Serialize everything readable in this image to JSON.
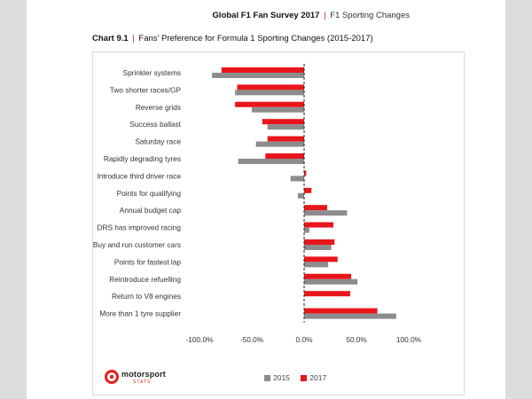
{
  "header": {
    "title": "Global F1 Fan Survey 2017",
    "separator": "|",
    "subtitle": "F1 Sporting Changes"
  },
  "chart_heading": {
    "number": "Chart 9.1",
    "separator": "|",
    "title": "Fans' Preference for Formula 1 Sporting Changes (2015-2017)"
  },
  "logo": {
    "word": "motorsport",
    "sub": "STATS"
  },
  "chart_data": {
    "type": "bar",
    "orientation": "horizontal",
    "categories": [
      "Sprinkler systems",
      "Two shorter races/GP",
      "Reverse grids",
      "Success ballast",
      "Saturday race",
      "Rapidly degrading tyres",
      "Introduce third driver race",
      "Points for qualifying",
      "Annual budget cap",
      "DRS has improved racing",
      "Buy and run customer cars",
      "Points for fastest lap",
      "Reintroduce refuelling",
      "Return to V8 engines",
      "More than 1 tyre supplier"
    ],
    "series": [
      {
        "name": "2015",
        "color": "#8c8c8c",
        "values": [
          -88,
          -66,
          -50,
          -35,
          -46,
          -63,
          -13,
          -6,
          41,
          5,
          26,
          23,
          51,
          null,
          88
        ]
      },
      {
        "name": "2017",
        "color": "#e8161b",
        "values": [
          -79,
          -64,
          -66,
          -40,
          -35,
          -37,
          2,
          7,
          22,
          28,
          29,
          32,
          45,
          44,
          70
        ]
      }
    ],
    "xlim": [
      -100,
      100
    ],
    "x_ticks": [
      -100,
      -50,
      0,
      50,
      100
    ],
    "x_tick_labels": [
      "-100.0%",
      "-50.0%",
      "0.0%",
      "50.0%",
      "100.0%"
    ],
    "legend_position": "bottom",
    "grid": false
  }
}
